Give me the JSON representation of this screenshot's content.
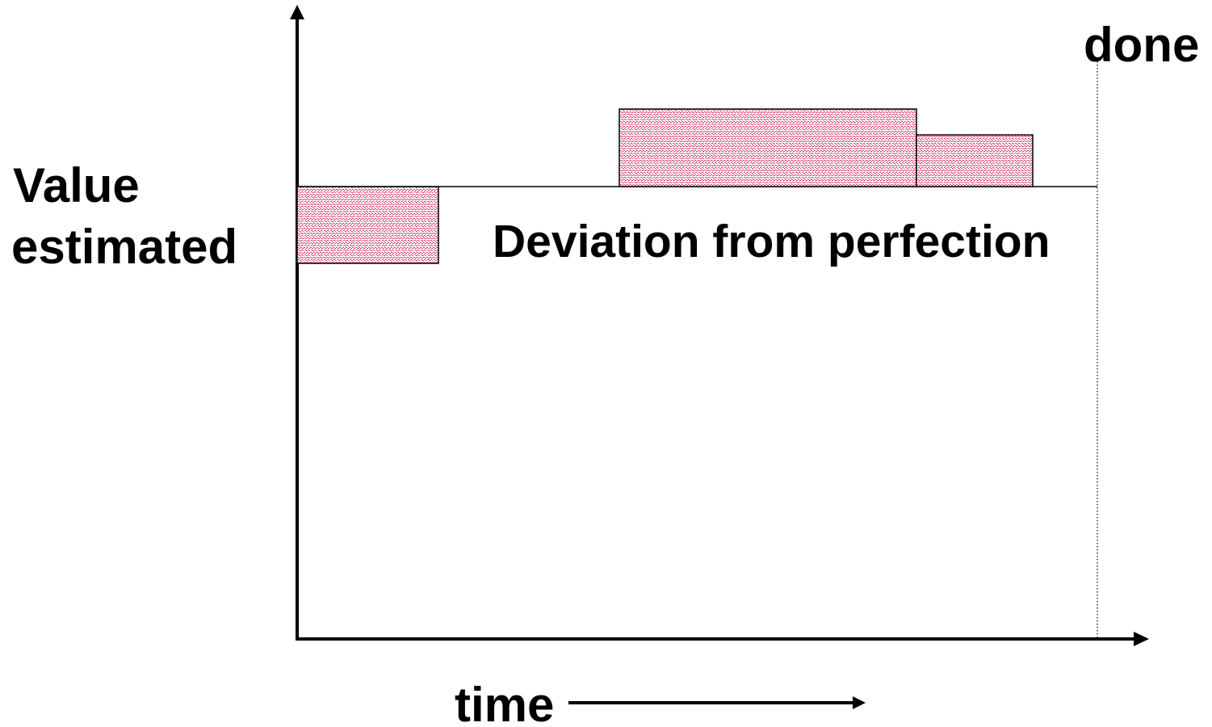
{
  "labels": {
    "y_axis_line1": "Value",
    "y_axis_line2": "estimated",
    "x_axis": "time",
    "done_marker": "done",
    "center_label": "Deviation from perfection"
  },
  "colors": {
    "axis": "#000000",
    "hatch_fill": "#d23c6e",
    "hatch_background": "#ffffff",
    "outline": "#000000"
  },
  "icons": {
    "y_axis_arrowhead": "arrow-up",
    "x_axis_arrowhead": "arrow-right",
    "time_arrow": "arrow-right"
  },
  "deviation_blocks": [
    {
      "id": "early",
      "direction": "below"
    },
    {
      "id": "middle",
      "direction": "above"
    },
    {
      "id": "late",
      "direction": "above"
    }
  ]
}
